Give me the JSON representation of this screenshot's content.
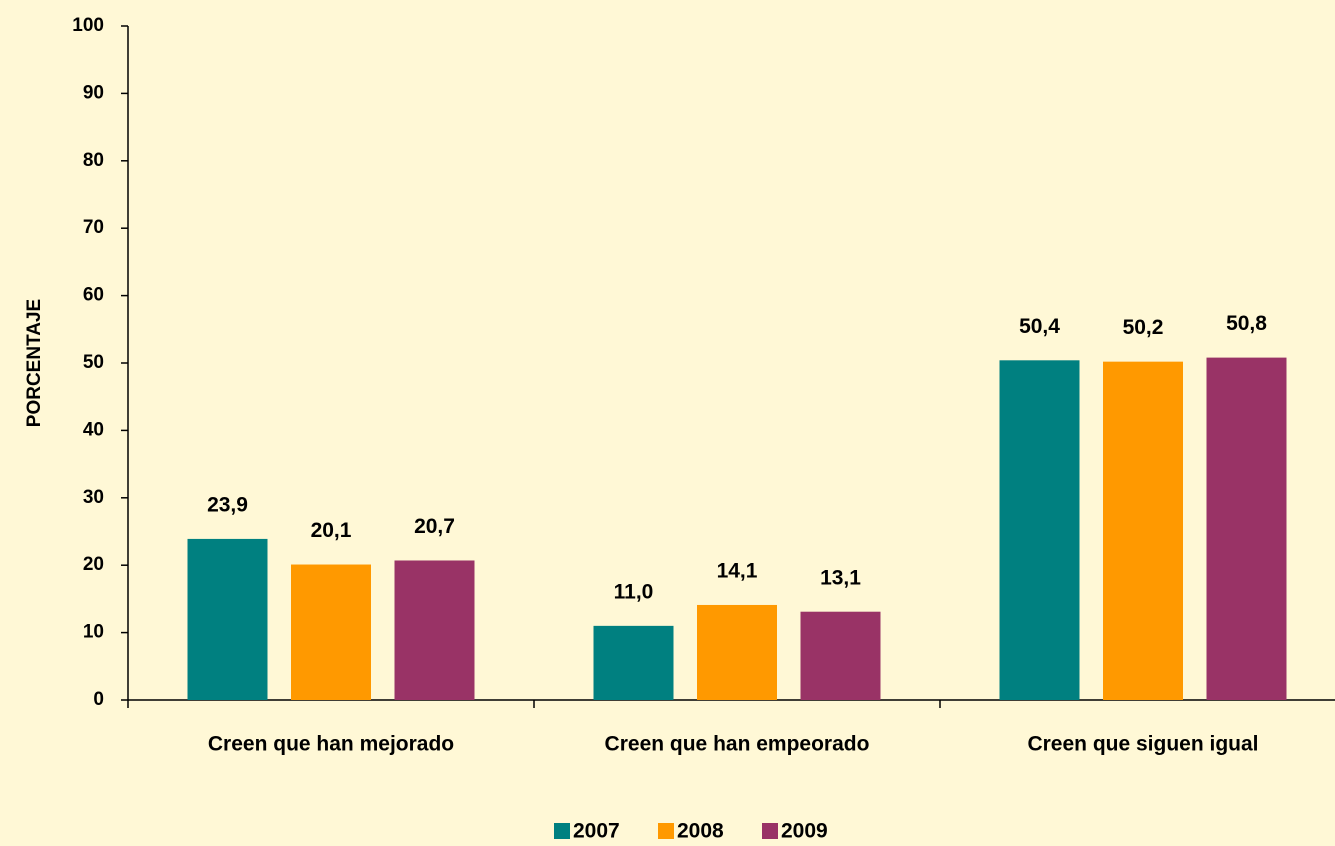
{
  "chart_data": {
    "type": "bar",
    "y_label": "PORCENTAJE",
    "categories": [
      "Creen que han mejorado",
      "Creen que han empeorado",
      "Creen que siguen igual"
    ],
    "series": [
      {
        "name": "2007",
        "color": "#008080",
        "values": [
          23.9,
          11.0,
          50.4
        ],
        "value_labels": [
          "23,9",
          "11,0",
          "50,4"
        ]
      },
      {
        "name": "2008",
        "color": "#FF9900",
        "values": [
          20.1,
          14.1,
          50.2
        ],
        "value_labels": [
          "20,1",
          "14,1",
          "50,2"
        ]
      },
      {
        "name": "2009",
        "color": "#993366",
        "values": [
          20.7,
          13.1,
          50.8
        ],
        "value_labels": [
          "20,7",
          "13,1",
          "50,8"
        ]
      }
    ],
    "ylim": [
      0,
      100
    ],
    "yticks": [
      0,
      10,
      20,
      30,
      40,
      50,
      60,
      70,
      80,
      90,
      100
    ],
    "legend": "bottom"
  }
}
